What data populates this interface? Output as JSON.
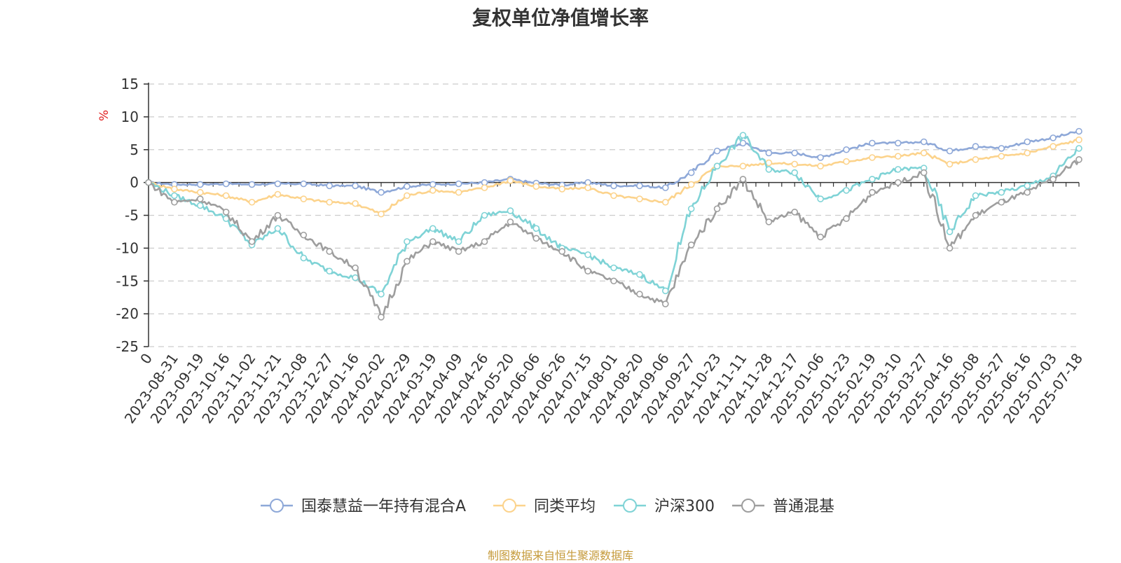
{
  "chart_data": {
    "type": "line",
    "title": "复权单位净值增长率",
    "ylabel": "%",
    "ylim": [
      -25,
      15
    ],
    "yticks": [
      15,
      10,
      5,
      0,
      -5,
      -10,
      -15,
      -20,
      -25
    ],
    "grid": true,
    "legend_position": "bottom",
    "x_tick_labels": [
      "0",
      "2023-08-31",
      "2023-09-19",
      "2023-10-16",
      "2023-11-02",
      "2023-11-21",
      "2023-12-08",
      "2023-12-27",
      "2024-01-16",
      "2024-02-02",
      "2024-02-29",
      "2024-03-19",
      "2024-04-09",
      "2024-04-26",
      "2024-05-20",
      "2024-06-06",
      "2024-06-26",
      "2024-07-15",
      "2024-08-01",
      "2024-08-20",
      "2024-09-06",
      "2024-09-27",
      "2024-10-23",
      "2024-11-11",
      "2024-11-28",
      "2024-12-17",
      "2025-01-06",
      "2025-01-23",
      "2025-02-19",
      "2025-03-10",
      "2025-03-27",
      "2025-04-16",
      "2025-05-08",
      "2025-05-27",
      "2025-06-16",
      "2025-07-03",
      "2025-07-18"
    ],
    "series": [
      {
        "name": "国泰慧益一年持有混合A",
        "color": "#8ea8d8",
        "values": [
          0,
          -0.3,
          -0.3,
          -0.2,
          -0.3,
          -0.2,
          -0.2,
          -0.5,
          -0.5,
          -1.5,
          -0.6,
          -0.3,
          -0.2,
          0,
          0.5,
          -0.1,
          -0.4,
          0,
          -0.5,
          -0.5,
          -0.8,
          1.5,
          4.8,
          6,
          4.5,
          4.5,
          3.8,
          5,
          6,
          6,
          6.2,
          4.8,
          5.5,
          5.2,
          6.2,
          6.8,
          7.8
        ]
      },
      {
        "name": "同类平均",
        "color": "#fcd38c",
        "values": [
          0,
          -1,
          -1.5,
          -2,
          -3,
          -1.8,
          -2.5,
          -3,
          -3.2,
          -4.8,
          -2,
          -1.2,
          -1.5,
          -0.8,
          0.3,
          -0.6,
          -1,
          -0.8,
          -2,
          -2.5,
          -3,
          -0.3,
          2.5,
          2.5,
          3,
          2.8,
          2.5,
          3.2,
          3.8,
          4,
          4.5,
          2.8,
          3.5,
          4,
          4.5,
          5.5,
          6.5
        ]
      },
      {
        "name": "沪深300",
        "color": "#7fd3d6",
        "values": [
          0,
          -2,
          -3.5,
          -5.5,
          -9.5,
          -7,
          -11.5,
          -13.5,
          -14.5,
          -17,
          -9,
          -7,
          -9,
          -5,
          -4.3,
          -7,
          -10,
          -11,
          -13,
          -14,
          -16.5,
          -4,
          2.5,
          7.2,
          2,
          1.5,
          -2.5,
          -1.2,
          0.5,
          2,
          2.2,
          -7.5,
          -2,
          -1.5,
          -0.5,
          1,
          5.2
        ]
      },
      {
        "name": "普通混基",
        "color": "#9e9e9e",
        "values": [
          0,
          -3,
          -2.5,
          -4.5,
          -9,
          -5,
          -8,
          -10.5,
          -13,
          -20.5,
          -12,
          -9,
          -10.5,
          -9,
          -6,
          -8.5,
          -10.5,
          -13.5,
          -15,
          -17,
          -18.5,
          -9.5,
          -4,
          0.5,
          -6,
          -4.5,
          -8.3,
          -5.5,
          -1.5,
          0,
          1.5,
          -10,
          -5,
          -3,
          -1.5,
          0.5,
          3.5
        ]
      }
    ]
  },
  "source_note": "制图数据来自恒生聚源数据库"
}
